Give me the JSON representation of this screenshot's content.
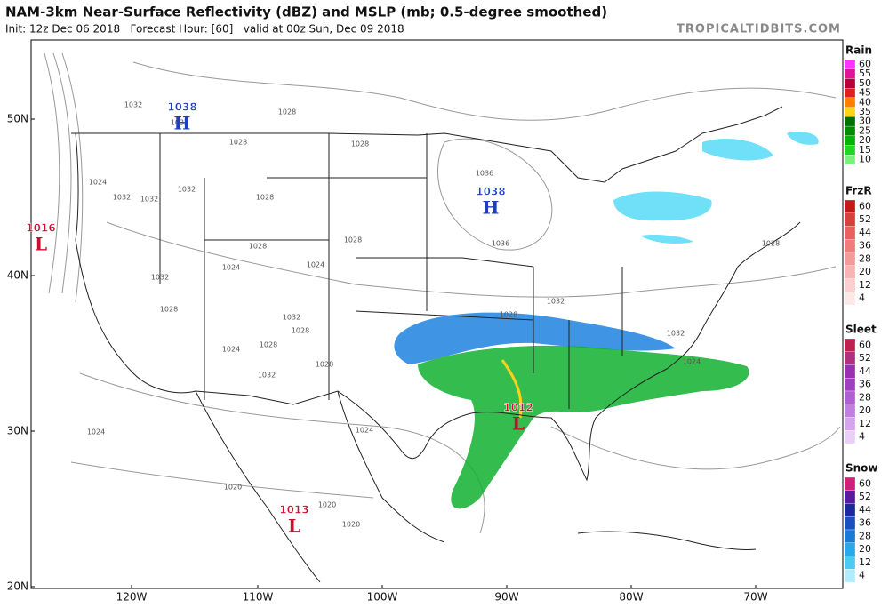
{
  "header": {
    "title": "NAM-3km Near-Surface Reflectivity (dBZ) and MSLP (mb; 0.5-degree smoothed)",
    "subtitle": "Init: 12z Dec 06 2018   Forecast Hour: [60]   valid at 00z Sun, Dec 09 2018",
    "site": "TROPICALTIDBITS.COM"
  },
  "map": {
    "longitudes": [
      "120W",
      "110W",
      "100W",
      "90W",
      "80W",
      "70W"
    ],
    "latitudes": [
      "50N",
      "40N",
      "30N",
      "20N"
    ],
    "pressure_centers": [
      {
        "type": "H",
        "pressure": "1038",
        "color": "#1a3fbf"
      },
      {
        "type": "H",
        "pressure": "1038",
        "color": "#1a3fbf"
      },
      {
        "type": "L",
        "pressure": "1016",
        "color": "#c8102e"
      },
      {
        "type": "L",
        "pressure": "1012",
        "color": "#c8102e"
      },
      {
        "type": "L",
        "pressure": "1013",
        "color": "#c8102e"
      }
    ],
    "isobar_labels": [
      "1032",
      "1028",
      "1032",
      "1028",
      "1028",
      "1024",
      "1032",
      "1032",
      "1028",
      "1032",
      "1028",
      "1024",
      "1032",
      "1028",
      "1024",
      "1028",
      "1024",
      "1032",
      "1028",
      "1028",
      "1032",
      "1028",
      "1024",
      "1024",
      "1020",
      "1020",
      "1020",
      "1036",
      "1036",
      "1028",
      "1032",
      "1032",
      "1028",
      "1024"
    ]
  },
  "legend": [
    {
      "title": "Rain",
      "levels": [
        60,
        55,
        50,
        45,
        40,
        35,
        30,
        25,
        20,
        15,
        10
      ],
      "colors": [
        "#ff33ff",
        "#e0149a",
        "#b8003a",
        "#e02020",
        "#ff7f00",
        "#ffd21a",
        "#006e00",
        "#008c00",
        "#00b400",
        "#1ed81e",
        "#7cf07c"
      ]
    },
    {
      "title": "FrzR",
      "levels": [
        60,
        52,
        44,
        36,
        28,
        20,
        12,
        4
      ],
      "colors": [
        "#c21a1a",
        "#d84040",
        "#e86060",
        "#f07c7c",
        "#f59a9a",
        "#f8b4b4",
        "#fbcfcf",
        "#fde8e8"
      ]
    },
    {
      "title": "Sleet",
      "levels": [
        60,
        52,
        44,
        36,
        28,
        20,
        12,
        4
      ],
      "colors": [
        "#c0204f",
        "#b03080",
        "#9a30b0",
        "#a040c0",
        "#b060d0",
        "#c080e0",
        "#d4a4ec",
        "#ead0f6"
      ]
    },
    {
      "title": "Snow",
      "levels": [
        60,
        52,
        44,
        36,
        28,
        20,
        12,
        4
      ],
      "colors": [
        "#d0207a",
        "#5a1aa0",
        "#1a2a9a",
        "#1a4fc0",
        "#1a7ad8",
        "#2aa8ec",
        "#4ccaf4",
        "#b0ecfb"
      ]
    }
  ]
}
